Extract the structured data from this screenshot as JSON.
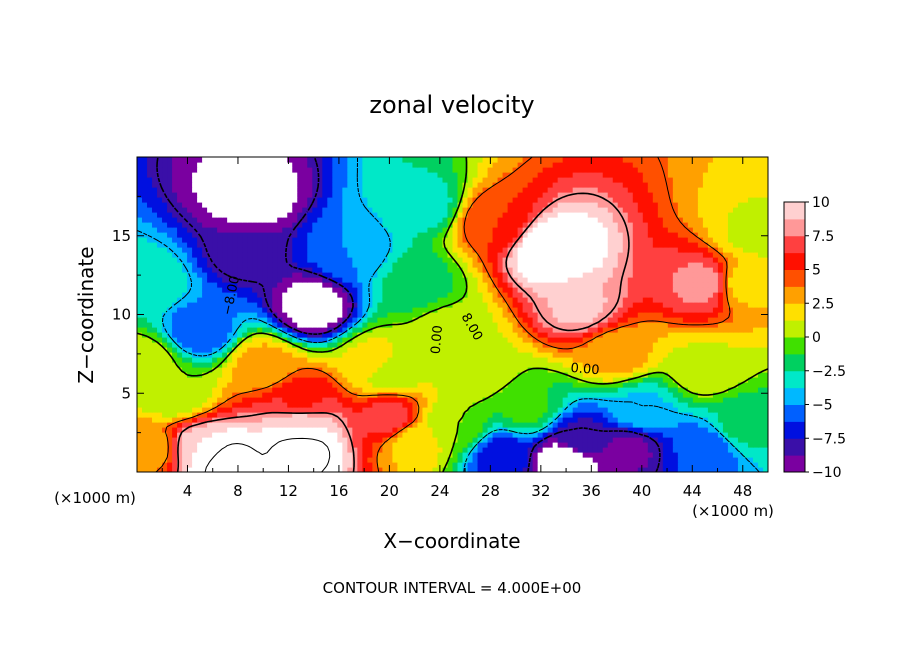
{
  "chart_data": {
    "type": "heatmap",
    "title": "zonal velocity",
    "xlabel": "X−coordinate",
    "ylabel": "Z−coordinate",
    "x_unit": "(×1000 m)",
    "z_unit": "(×1000 m)",
    "xlim": [
      0,
      50
    ],
    "ylim": [
      0,
      20
    ],
    "x_ticks": [
      "4",
      "8",
      "12",
      "16",
      "20",
      "24",
      "28",
      "32",
      "36",
      "40",
      "44",
      "48"
    ],
    "x_tick_values": [
      4,
      8,
      12,
      16,
      20,
      24,
      28,
      32,
      36,
      40,
      44,
      48
    ],
    "y_ticks": [
      "5",
      "10",
      "15"
    ],
    "y_tick_values": [
      5,
      10,
      15
    ],
    "colorbar": {
      "range": [
        -10,
        10
      ],
      "tick_labels": [
        "10",
        "7.5",
        "5",
        "2.5",
        "0",
        "−2.5",
        "−5",
        "−7.5",
        "−10"
      ],
      "tick_values": [
        10,
        7.5,
        5,
        2.5,
        0,
        -2.5,
        -5,
        -7.5,
        -10
      ],
      "colors": [
        "#7a00a0",
        "#3a0fa8",
        "#0010e0",
        "#0060ff",
        "#00b8ff",
        "#00e8c8",
        "#00d060",
        "#40e000",
        "#c0f000",
        "#ffe000",
        "#ffa000",
        "#ff5000",
        "#ff1000",
        "#ff4040",
        "#ff9898",
        "#ffd0d0"
      ]
    },
    "contour_labels": [
      "−8.00",
      "0.00",
      "8.00",
      "0.00"
    ],
    "features": [
      {
        "x": 9,
        "z": 17.5,
        "u": -11
      },
      {
        "x": 8.5,
        "z": 14,
        "u": -8.5
      },
      {
        "x": 14,
        "z": 10.5,
        "u": -11
      },
      {
        "x": 5,
        "z": 9,
        "u": -6
      },
      {
        "x": 1,
        "z": 12,
        "u": -3
      },
      {
        "x": 0.5,
        "z": 7,
        "u": 1
      },
      {
        "x": 17,
        "z": 14,
        "u": -5
      },
      {
        "x": 22,
        "z": 12,
        "u": -2
      },
      {
        "x": 23,
        "z": 17,
        "u": -3
      },
      {
        "x": 24.5,
        "z": 9,
        "u": 0.5
      },
      {
        "x": 19,
        "z": 7,
        "u": 2
      },
      {
        "x": 20,
        "z": 6.5,
        "u": 0
      },
      {
        "x": 27,
        "z": 6.5,
        "u": 1
      },
      {
        "x": 28,
        "z": 16,
        "u": 5
      },
      {
        "x": 33,
        "z": 14,
        "u": 12
      },
      {
        "x": 35,
        "z": 10.5,
        "u": 9
      },
      {
        "x": 45,
        "z": 12,
        "u": 8
      },
      {
        "x": 48,
        "z": 12,
        "u": 2
      },
      {
        "x": 49,
        "z": 15,
        "u": 1
      },
      {
        "x": 38,
        "z": 7.5,
        "u": 3
      },
      {
        "x": 45,
        "z": 6.5,
        "u": 1
      },
      {
        "x": 40,
        "z": 4,
        "u": -4
      },
      {
        "x": 35,
        "z": 2,
        "u": -8
      },
      {
        "x": 39,
        "z": 1.5,
        "u": -9
      },
      {
        "x": 34,
        "z": 0.8,
        "u": -12
      },
      {
        "x": 29,
        "z": 1,
        "u": -7
      },
      {
        "x": 31,
        "z": 4,
        "u": -1
      },
      {
        "x": 45,
        "z": 1.5,
        "u": -6
      },
      {
        "x": 48,
        "z": 3,
        "u": -2
      },
      {
        "x": 10,
        "z": 6.8,
        "u": 3
      },
      {
        "x": 13,
        "z": 4.5,
        "u": 6
      },
      {
        "x": 13,
        "z": 3,
        "u": 10
      },
      {
        "x": 13,
        "z": 1.5,
        "u": 13
      },
      {
        "x": 5,
        "z": 1.5,
        "u": 10
      },
      {
        "x": 7,
        "z": 0.6,
        "u": 13
      },
      {
        "x": 1,
        "z": 1.5,
        "u": 3
      },
      {
        "x": 3,
        "z": 5,
        "u": 0
      },
      {
        "x": 20,
        "z": 3.5,
        "u": 7
      },
      {
        "x": 22,
        "z": 2,
        "u": 2
      },
      {
        "x": 25,
        "z": 3,
        "u": 0
      }
    ]
  },
  "footer": {
    "contour_interval": "CONTOUR INTERVAL = 4.000E+00"
  }
}
